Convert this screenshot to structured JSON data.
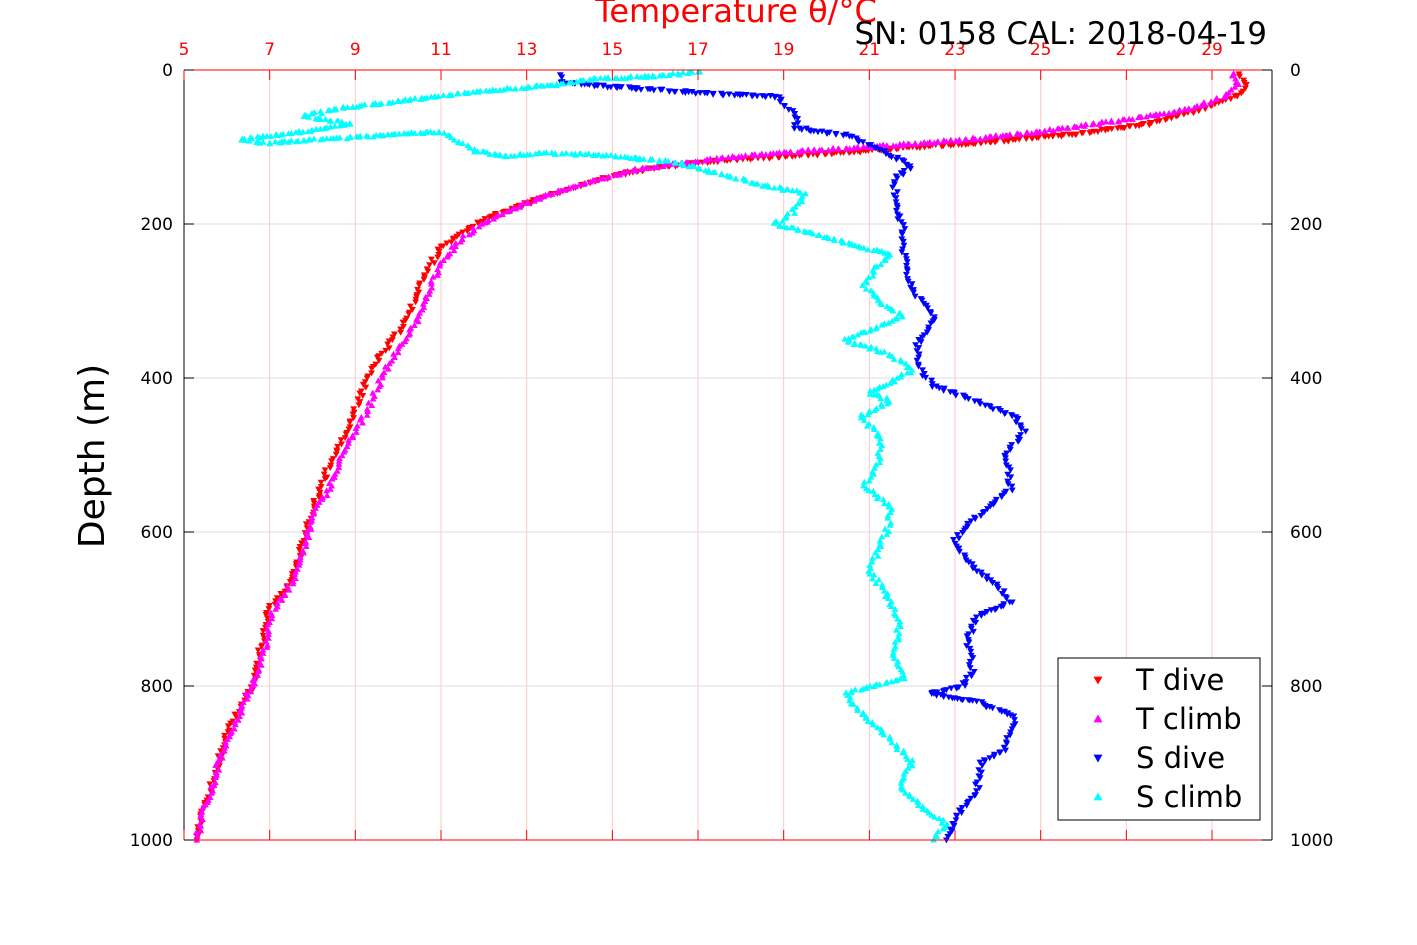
{
  "header": {
    "title": "Temperature θ/°C",
    "serial_cal": "SN: 0158  CAL: 2018-04-19"
  },
  "colors": {
    "temperature_axis": "#ff0000",
    "grid_temperature": "#ffc8c8",
    "grid_depth": "#dcdcdc",
    "t_dive": "#ff0000",
    "t_climb": "#ff00ff",
    "s_dive": "#0000ff",
    "s_climb": "#00ffff"
  },
  "chart_data": {
    "type": "scatter",
    "title": "Temperature θ/°C",
    "ylabel": "Depth (m)",
    "x_temperature": {
      "lim": [
        5,
        30.4
      ],
      "ticks": [
        5,
        7,
        9,
        11,
        13,
        15,
        17,
        19,
        21,
        23,
        25,
        27,
        29
      ]
    },
    "y_depth": {
      "lim": [
        0,
        1000
      ],
      "reversed": true,
      "ticks": [
        0,
        200,
        400,
        600,
        800,
        1000
      ]
    },
    "grid": true,
    "legend_position": "bottom-right",
    "series": [
      {
        "name": "T dive",
        "marker": "triangle-down",
        "points": [
          [
            29.6,
            5
          ],
          [
            29.8,
            20
          ],
          [
            29.7,
            30
          ],
          [
            28.8,
            50
          ],
          [
            27.5,
            70
          ],
          [
            25.5,
            85
          ],
          [
            23.5,
            95
          ],
          [
            22.0,
            100
          ],
          [
            20.5,
            107
          ],
          [
            19.0,
            112
          ],
          [
            17.5,
            118
          ],
          [
            16.2,
            125
          ],
          [
            15.2,
            135
          ],
          [
            14.5,
            145
          ],
          [
            13.7,
            160
          ],
          [
            12.9,
            175
          ],
          [
            12.1,
            192
          ],
          [
            11.5,
            210
          ],
          [
            11.0,
            230
          ],
          [
            10.8,
            250
          ],
          [
            10.5,
            280
          ],
          [
            10.3,
            310
          ],
          [
            10.0,
            340
          ],
          [
            9.6,
            370
          ],
          [
            9.3,
            400
          ],
          [
            9.0,
            440
          ],
          [
            8.8,
            470
          ],
          [
            8.5,
            500
          ],
          [
            8.2,
            540
          ],
          [
            8.0,
            570
          ],
          [
            7.8,
            610
          ],
          [
            7.6,
            650
          ],
          [
            7.3,
            680
          ],
          [
            7.0,
            700
          ],
          [
            6.8,
            750
          ],
          [
            6.6,
            800
          ],
          [
            6.3,
            830
          ],
          [
            6.0,
            860
          ],
          [
            5.8,
            900
          ],
          [
            5.6,
            940
          ],
          [
            5.4,
            970
          ],
          [
            5.3,
            1000
          ]
        ]
      },
      {
        "name": "T climb",
        "marker": "triangle-up",
        "points": [
          [
            29.5,
            5
          ],
          [
            29.6,
            20
          ],
          [
            29.3,
            35
          ],
          [
            28.5,
            50
          ],
          [
            27.0,
            65
          ],
          [
            25.0,
            80
          ],
          [
            23.0,
            92
          ],
          [
            21.0,
            100
          ],
          [
            19.5,
            105
          ],
          [
            18.0,
            112
          ],
          [
            16.5,
            122
          ],
          [
            15.5,
            130
          ],
          [
            14.8,
            140
          ],
          [
            13.9,
            155
          ],
          [
            13.0,
            172
          ],
          [
            12.4,
            188
          ],
          [
            11.8,
            205
          ],
          [
            11.4,
            225
          ],
          [
            11.0,
            250
          ],
          [
            10.7,
            290
          ],
          [
            10.5,
            320
          ],
          [
            10.2,
            345
          ],
          [
            9.9,
            370
          ],
          [
            9.6,
            400
          ],
          [
            9.3,
            440
          ],
          [
            9.0,
            470
          ],
          [
            8.7,
            500
          ],
          [
            8.4,
            540
          ],
          [
            8.1,
            570
          ],
          [
            7.9,
            600
          ],
          [
            7.7,
            640
          ],
          [
            7.4,
            680
          ],
          [
            7.1,
            700
          ],
          [
            6.9,
            750
          ],
          [
            6.7,
            790
          ],
          [
            6.5,
            810
          ],
          [
            6.3,
            840
          ],
          [
            6.0,
            870
          ],
          [
            5.8,
            900
          ],
          [
            5.6,
            940
          ],
          [
            5.4,
            970
          ],
          [
            5.3,
            1000
          ]
        ]
      },
      {
        "name": "S dive",
        "marker": "triangle-down",
        "points": [
          [
            13.8,
            5
          ],
          [
            13.8,
            15
          ],
          [
            14.9,
            22
          ],
          [
            16.0,
            25
          ],
          [
            17.1,
            30
          ],
          [
            17.8,
            32
          ],
          [
            18.9,
            35
          ],
          [
            19.0,
            45
          ],
          [
            19.3,
            60
          ],
          [
            19.3,
            75
          ],
          [
            20.5,
            85
          ],
          [
            21.0,
            98
          ],
          [
            21.5,
            110
          ],
          [
            22.0,
            125
          ],
          [
            21.6,
            140
          ],
          [
            21.6,
            175
          ],
          [
            21.8,
            210
          ],
          [
            21.8,
            240
          ],
          [
            21.9,
            270
          ],
          [
            22.2,
            300
          ],
          [
            22.5,
            320
          ],
          [
            22.3,
            340
          ],
          [
            22.1,
            360
          ],
          [
            22.2,
            390
          ],
          [
            22.5,
            410
          ],
          [
            23.5,
            430
          ],
          [
            24.4,
            450
          ],
          [
            24.6,
            470
          ],
          [
            24.2,
            500
          ],
          [
            24.3,
            545
          ],
          [
            23.5,
            580
          ],
          [
            23.0,
            610
          ],
          [
            23.3,
            640
          ],
          [
            24.0,
            670
          ],
          [
            24.3,
            690
          ],
          [
            23.5,
            710
          ],
          [
            23.3,
            740
          ],
          [
            23.4,
            780
          ],
          [
            23.2,
            800
          ],
          [
            22.4,
            810
          ],
          [
            23.5,
            820
          ],
          [
            24.4,
            840
          ],
          [
            24.2,
            880
          ],
          [
            23.6,
            900
          ],
          [
            23.5,
            940
          ],
          [
            23.0,
            970
          ],
          [
            22.8,
            1000
          ]
        ]
      },
      {
        "name": "S climb",
        "marker": "triangle-up",
        "points": [
          [
            17.1,
            2
          ],
          [
            16.0,
            8
          ],
          [
            14.5,
            12
          ],
          [
            13.9,
            18
          ],
          [
            11.5,
            30
          ],
          [
            10.1,
            40
          ],
          [
            8.6,
            50
          ],
          [
            7.8,
            60
          ],
          [
            8.9,
            70
          ],
          [
            7.8,
            80
          ],
          [
            6.3,
            90
          ],
          [
            6.8,
            95
          ],
          [
            7.7,
            92
          ],
          [
            9.6,
            85
          ],
          [
            11.0,
            80
          ],
          [
            11.8,
            105
          ],
          [
            12.5,
            112
          ],
          [
            13.5,
            108
          ],
          [
            14.6,
            110
          ],
          [
            16.5,
            120
          ],
          [
            17.5,
            135
          ],
          [
            18.5,
            150
          ],
          [
            19.5,
            160
          ],
          [
            19.2,
            185
          ],
          [
            18.8,
            200
          ],
          [
            19.5,
            210
          ],
          [
            20.5,
            225
          ],
          [
            21.5,
            240
          ],
          [
            21.1,
            260
          ],
          [
            20.9,
            280
          ],
          [
            21.2,
            300
          ],
          [
            21.8,
            320
          ],
          [
            20.4,
            350
          ],
          [
            21.5,
            370
          ],
          [
            22.0,
            390
          ],
          [
            21.0,
            420
          ],
          [
            21.5,
            430
          ],
          [
            20.8,
            450
          ],
          [
            21.3,
            480
          ],
          [
            21.2,
            510
          ],
          [
            20.9,
            540
          ],
          [
            21.5,
            570
          ],
          [
            21.4,
            600
          ],
          [
            21.0,
            650
          ],
          [
            21.5,
            690
          ],
          [
            21.7,
            720
          ],
          [
            21.6,
            760
          ],
          [
            21.8,
            790
          ],
          [
            20.4,
            810
          ],
          [
            20.9,
            840
          ],
          [
            21.5,
            870
          ],
          [
            22.0,
            900
          ],
          [
            21.7,
            930
          ],
          [
            22.3,
            960
          ],
          [
            22.8,
            980
          ],
          [
            22.5,
            1000
          ]
        ]
      }
    ]
  }
}
